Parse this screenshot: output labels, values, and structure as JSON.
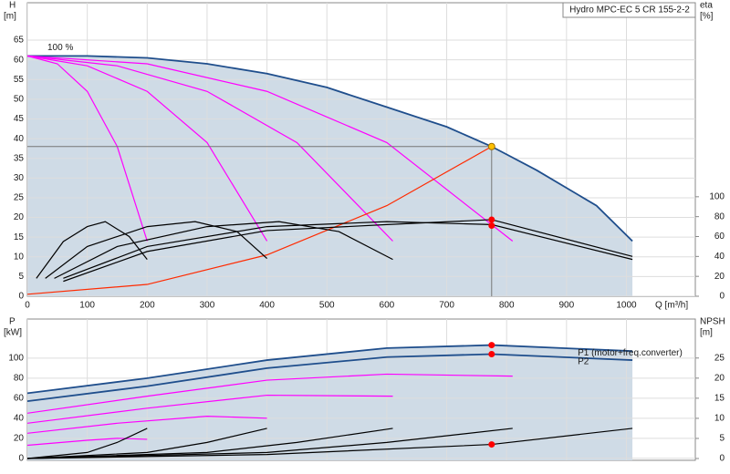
{
  "chart_data": [
    {
      "type": "line",
      "title": "Hydro MPC-EC 5 CR 155-2-2",
      "curve_label": "100 %",
      "y_label": "H",
      "y_unit": "[m]",
      "y2_label": "eta",
      "y2_unit": "[%]",
      "x_label": "Q [m³/h]",
      "xlim": [
        0,
        1115
      ],
      "ylim": [
        0,
        74.5
      ],
      "y2lim": [
        0,
        295
      ],
      "grid": true,
      "xticks": [
        0,
        100,
        200,
        300,
        400,
        500,
        600,
        700,
        800,
        900,
        1000
      ],
      "yticks": [
        0,
        5,
        10,
        15,
        20,
        25,
        30,
        35,
        40,
        45,
        50,
        55,
        60,
        65
      ],
      "y2ticks": [
        0,
        20,
        40,
        60,
        80,
        100
      ],
      "series": [
        {
          "color": "#1f4e8c",
          "area": true,
          "x": [
            0,
            100,
            200,
            300,
            400,
            500,
            600,
            700,
            775,
            850,
            950,
            1010
          ],
          "values": [
            61,
            61,
            60.5,
            59,
            56.5,
            53,
            48,
            43,
            38,
            32,
            23,
            14
          ]
        },
        {
          "color": "#ff00ff",
          "x": [
            0,
            50,
            100,
            150,
            200
          ],
          "values": [
            61,
            59,
            52,
            38,
            14
          ]
        },
        {
          "color": "#ff00ff",
          "x": [
            0,
            100,
            200,
            300,
            400
          ],
          "values": [
            61,
            58.5,
            52,
            39,
            14
          ]
        },
        {
          "color": "#ff00ff",
          "x": [
            0,
            150,
            300,
            450,
            610
          ],
          "values": [
            61,
            58.5,
            52,
            39,
            14
          ]
        },
        {
          "color": "#ff00ff",
          "x": [
            0,
            200,
            400,
            600,
            810
          ],
          "values": [
            61,
            59,
            52,
            39,
            14
          ]
        },
        {
          "color": "#ff2a00",
          "x": [
            0,
            200,
            400,
            600,
            775
          ],
          "values": [
            0.5,
            3,
            10.5,
            23,
            38
          ]
        },
        {
          "color": "#000000",
          "axis": "y2",
          "x": [
            15,
            60,
            100,
            130,
            170,
            200
          ],
          "values": [
            18,
            55,
            70,
            75,
            60,
            37
          ]
        },
        {
          "color": "#000000",
          "axis": "y2",
          "x": [
            30,
            100,
            200,
            280,
            350,
            400
          ],
          "values": [
            18,
            50,
            70,
            75,
            65,
            38
          ]
        },
        {
          "color": "#000000",
          "axis": "y2",
          "x": [
            45,
            150,
            300,
            420,
            520,
            610
          ],
          "values": [
            18,
            50,
            70,
            75,
            65,
            37
          ]
        },
        {
          "color": "#000000",
          "axis": "y2",
          "x": [
            60,
            200,
            400,
            600,
            775,
            1010
          ],
          "values": [
            18,
            50,
            70,
            75,
            72,
            37
          ]
        },
        {
          "color": "#000000",
          "axis": "y2",
          "x": [
            60,
            200,
            400,
            600,
            775,
            1010
          ],
          "values": [
            15,
            45,
            66,
            72,
            77,
            40
          ]
        }
      ],
      "points": [
        {
          "x": 775,
          "y": 38,
          "color": "#ffc000"
        },
        {
          "x": 775,
          "y": 77,
          "axis": "y2",
          "color": "#ff0000"
        },
        {
          "x": 775,
          "y": 71,
          "axis": "y2",
          "color": "#ff0000"
        }
      ]
    },
    {
      "type": "line",
      "y_label": "P",
      "y_unit": "[kW]",
      "y2_label": "NPSH",
      "y2_unit": "[m]",
      "xlim": [
        0,
        1115
      ],
      "ylim": [
        -2,
        139
      ],
      "y2lim": [
        -0.45,
        34.7
      ],
      "grid": true,
      "xticks": [
        0,
        100,
        200,
        300,
        400,
        500,
        600,
        700,
        800,
        900,
        1000
      ],
      "yticks": [
        0,
        20,
        40,
        60,
        80,
        100
      ],
      "y2ticks": [
        0,
        5,
        10,
        15,
        20,
        25
      ],
      "series": [
        {
          "name": "P1 (motor+freq.converter)",
          "color": "#1f4e8c",
          "area": true,
          "x": [
            0,
            200,
            400,
            600,
            775,
            1010
          ],
          "values": [
            65,
            80,
            98,
            110,
            113,
            107
          ]
        },
        {
          "name": "P2",
          "color": "#1f4e8c",
          "x": [
            0,
            200,
            400,
            600,
            775,
            1010
          ],
          "values": [
            57,
            72,
            90,
            101,
            104,
            98
          ]
        },
        {
          "color": "#ff00ff",
          "x": [
            0,
            200,
            400,
            600,
            810
          ],
          "values": [
            45,
            62,
            78,
            84,
            82
          ]
        },
        {
          "color": "#ff00ff",
          "x": [
            0,
            200,
            400,
            610
          ],
          "values": [
            35,
            50,
            63,
            62
          ]
        },
        {
          "color": "#ff00ff",
          "x": [
            0,
            150,
            300,
            400
          ],
          "values": [
            25,
            35,
            42,
            40
          ]
        },
        {
          "color": "#ff00ff",
          "x": [
            0,
            100,
            150,
            200
          ],
          "values": [
            13,
            18,
            20,
            19
          ]
        },
        {
          "color": "#000000",
          "axis": "y2",
          "x": [
            0,
            100,
            150,
            200
          ],
          "values": [
            0,
            1.5,
            4,
            7.5
          ]
        },
        {
          "color": "#000000",
          "axis": "y2",
          "x": [
            0,
            200,
            300,
            400
          ],
          "values": [
            0,
            1.5,
            4,
            7.5
          ]
        },
        {
          "color": "#000000",
          "axis": "y2",
          "x": [
            0,
            300,
            450,
            610
          ],
          "values": [
            0,
            1.5,
            4,
            7.5
          ]
        },
        {
          "color": "#000000",
          "axis": "y2",
          "x": [
            0,
            400,
            600,
            810
          ],
          "values": [
            0,
            1.5,
            4,
            7.5
          ]
        },
        {
          "color": "#000000",
          "axis": "y2",
          "x": [
            0,
            400,
            775,
            1010
          ],
          "values": [
            0,
            1,
            3.5,
            7.5
          ]
        }
      ],
      "points": [
        {
          "x": 775,
          "y": 113,
          "color": "#ff0000"
        },
        {
          "x": 775,
          "y": 104,
          "color": "#ff0000"
        },
        {
          "x": 775,
          "y": 3.5,
          "axis": "y2",
          "color": "#ff0000"
        }
      ]
    }
  ]
}
